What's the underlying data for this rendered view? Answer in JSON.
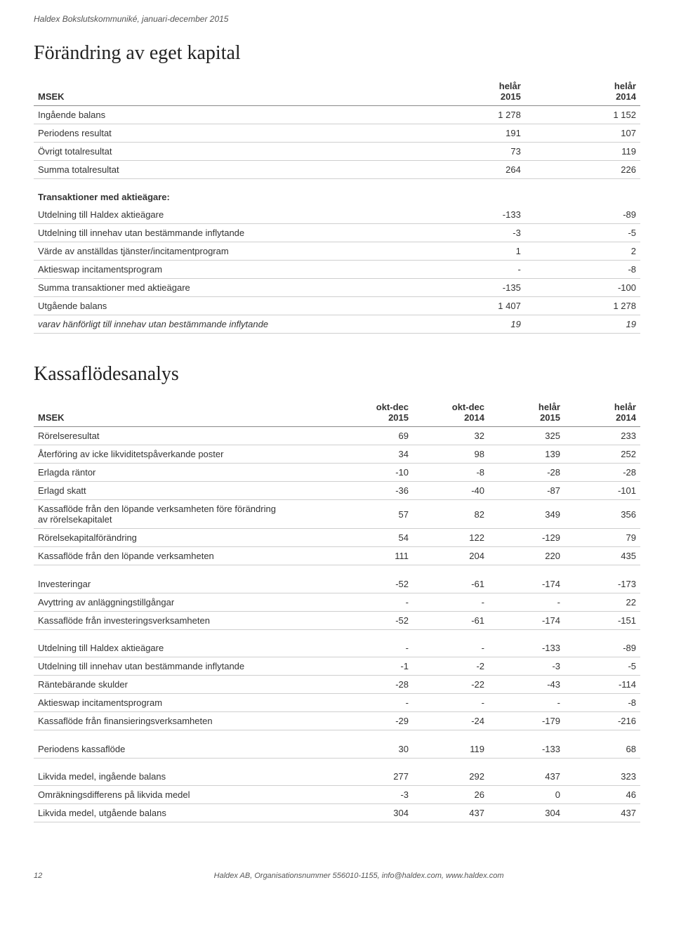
{
  "document": {
    "header_text": "Haldex Bokslutskommuniké, januari-december 2015",
    "footer_text": "Haldex AB, Organisationsnummer 556010-1155, info@haldex.com, www.haldex.com",
    "page_number": "12"
  },
  "table1": {
    "title": "Förändring av eget kapital",
    "unit_label": "MSEK",
    "col_headers": [
      {
        "top": "helår",
        "sub": "2015"
      },
      {
        "top": "helår",
        "sub": "2014"
      }
    ],
    "rows_a": [
      {
        "label": "Ingående balans",
        "v": [
          "1 278",
          "1 152"
        ]
      },
      {
        "label": "Periodens resultat",
        "v": [
          "191",
          "107"
        ]
      },
      {
        "label": "Övrigt totalresultat",
        "v": [
          "73",
          "119"
        ]
      },
      {
        "label": "Summa totalresultat",
        "v": [
          "264",
          "226"
        ]
      }
    ],
    "section_header": "Transaktioner med aktieägare:",
    "rows_b": [
      {
        "label": "Utdelning till Haldex aktieägare",
        "v": [
          "-133",
          "-89"
        ]
      },
      {
        "label": "Utdelning till innehav utan bestämmande inflytande",
        "v": [
          "-3",
          "-5"
        ]
      },
      {
        "label": "Värde av anställdas tjänster/incitamentprogram",
        "v": [
          "1",
          "2"
        ]
      },
      {
        "label": "Aktieswap incitamentsprogram",
        "v": [
          "-",
          "-8"
        ]
      },
      {
        "label": "Summa transaktioner med aktieägare",
        "v": [
          "-135",
          "-100"
        ]
      },
      {
        "label": "Utgående balans",
        "v": [
          "1 407",
          "1 278"
        ]
      }
    ],
    "note_row": {
      "label": "varav hänförligt till innehav utan bestämmande inflytande",
      "v": [
        "19",
        "19"
      ]
    }
  },
  "table2": {
    "title": "Kassaflödesanalys",
    "unit_label": "MSEK",
    "col_headers": [
      {
        "top": "okt-dec",
        "sub": "2015"
      },
      {
        "top": "okt-dec",
        "sub": "2014"
      },
      {
        "top": "helår",
        "sub": "2015"
      },
      {
        "top": "helår",
        "sub": "2014"
      }
    ],
    "groups": [
      [
        {
          "label": "Rörelseresultat",
          "v": [
            "69",
            "32",
            "325",
            "233"
          ]
        },
        {
          "label": "Återföring av icke likviditetspåverkande poster",
          "v": [
            "34",
            "98",
            "139",
            "252"
          ]
        },
        {
          "label": "Erlagda räntor",
          "v": [
            "-10",
            "-8",
            "-28",
            "-28"
          ]
        },
        {
          "label": "Erlagd skatt",
          "v": [
            "-36",
            "-40",
            "-87",
            "-101"
          ]
        },
        {
          "label": "Kassaflöde från den löpande verksamheten före förändring av rörelsekapitalet",
          "v": [
            "57",
            "82",
            "349",
            "356"
          ],
          "multiline": true
        },
        {
          "label": "Rörelsekapitalförändring",
          "v": [
            "54",
            "122",
            "-129",
            "79"
          ]
        },
        {
          "label": "Kassaflöde från den löpande verksamheten",
          "v": [
            "111",
            "204",
            "220",
            "435"
          ]
        }
      ],
      [
        {
          "label": "Investeringar",
          "v": [
            "-52",
            "-61",
            "-174",
            "-173"
          ]
        },
        {
          "label": "Avyttring av anläggningstillgångar",
          "v": [
            "-",
            "-",
            "-",
            "22"
          ]
        },
        {
          "label": "Kassaflöde från investeringsverksamheten",
          "v": [
            "-52",
            "-61",
            "-174",
            "-151"
          ]
        }
      ],
      [
        {
          "label": "Utdelning till Haldex aktieägare",
          "v": [
            "-",
            "-",
            "-133",
            "-89"
          ]
        },
        {
          "label": "Utdelning till innehav utan bestämmande inflytande",
          "v": [
            "-1",
            "-2",
            "-3",
            "-5"
          ]
        },
        {
          "label": "Räntebärande skulder",
          "v": [
            "-28",
            "-22",
            "-43",
            "-114"
          ]
        },
        {
          "label": "Aktieswap incitamentsprogram",
          "v": [
            "-",
            "-",
            "-",
            "-8"
          ]
        },
        {
          "label": "Kassaflöde från finansieringsverksamheten",
          "v": [
            "-29",
            "-24",
            "-179",
            "-216"
          ]
        }
      ],
      [
        {
          "label": "Periodens kassaflöde",
          "v": [
            "30",
            "119",
            "-133",
            "68"
          ]
        }
      ],
      [
        {
          "label": "Likvida medel, ingående balans",
          "v": [
            "277",
            "292",
            "437",
            "323"
          ]
        },
        {
          "label": "Omräkningsdifferens på likvida medel",
          "v": [
            "-3",
            "26",
            "0",
            "46"
          ]
        },
        {
          "label": "Likvida medel, utgående balans",
          "v": [
            "304",
            "437",
            "304",
            "437"
          ]
        }
      ]
    ]
  }
}
